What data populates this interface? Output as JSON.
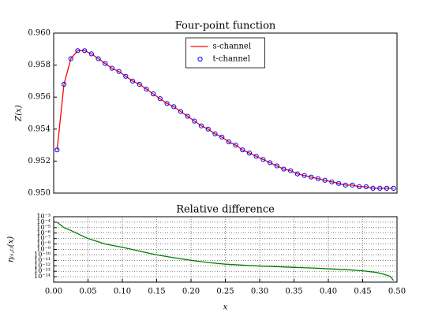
{
  "chart_data": [
    {
      "type": "line",
      "title": "Four-point function",
      "y_label": "Z(x)",
      "x": [
        0.005,
        0.015,
        0.025,
        0.035,
        0.045,
        0.055,
        0.065,
        0.075,
        0.085,
        0.095,
        0.105,
        0.115,
        0.125,
        0.135,
        0.145,
        0.155,
        0.165,
        0.175,
        0.185,
        0.195,
        0.205,
        0.215,
        0.225,
        0.235,
        0.245,
        0.255,
        0.265,
        0.275,
        0.285,
        0.295,
        0.305,
        0.315,
        0.325,
        0.335,
        0.345,
        0.355,
        0.365,
        0.375,
        0.385,
        0.395,
        0.405,
        0.415,
        0.425,
        0.435,
        0.445,
        0.455,
        0.465,
        0.475,
        0.485,
        0.495
      ],
      "series": [
        {
          "name": "s-channel",
          "color": "#ff0000",
          "style": "line",
          "values": [
            0.9527,
            0.9568,
            0.9584,
            0.9589,
            0.9589,
            0.9587,
            0.9584,
            0.9581,
            0.9578,
            0.9576,
            0.9573,
            0.957,
            0.9568,
            0.9565,
            0.9562,
            0.9559,
            0.9556,
            0.9554,
            0.9551,
            0.9548,
            0.9545,
            0.9542,
            0.954,
            0.9537,
            0.9535,
            0.9532,
            0.953,
            0.9527,
            0.9525,
            0.9523,
            0.9521,
            0.9519,
            0.9517,
            0.9515,
            0.9514,
            0.9512,
            0.9511,
            0.951,
            0.9509,
            0.9508,
            0.9507,
            0.9506,
            0.9505,
            0.9505,
            0.9504,
            0.9504,
            0.9503,
            0.9503,
            0.9503,
            0.9503
          ]
        },
        {
          "name": "t-channel",
          "color": "#0000ff",
          "style": "markers",
          "values": [
            0.9527,
            0.9568,
            0.9584,
            0.9589,
            0.9589,
            0.9587,
            0.9584,
            0.9581,
            0.9578,
            0.9576,
            0.9573,
            0.957,
            0.9568,
            0.9565,
            0.9562,
            0.9559,
            0.9556,
            0.9554,
            0.9551,
            0.9548,
            0.9545,
            0.9542,
            0.954,
            0.9537,
            0.9535,
            0.9532,
            0.953,
            0.9527,
            0.9525,
            0.9523,
            0.9521,
            0.9519,
            0.9517,
            0.9515,
            0.9514,
            0.9512,
            0.9511,
            0.951,
            0.9509,
            0.9508,
            0.9507,
            0.9506,
            0.9505,
            0.9505,
            0.9504,
            0.9504,
            0.9503,
            0.9503,
            0.9503,
            0.9503
          ]
        }
      ],
      "xlim": [
        0,
        0.5
      ],
      "ylim": [
        0.95,
        0.96
      ],
      "yticks": [
        {
          "value": 0.95,
          "label": "0.950"
        },
        {
          "value": 0.952,
          "label": "0.952"
        },
        {
          "value": 0.954,
          "label": "0.954"
        },
        {
          "value": 0.956,
          "label": "0.956"
        },
        {
          "value": 0.958,
          "label": "0.958"
        },
        {
          "value": 0.96,
          "label": "0.960"
        }
      ],
      "grid": false,
      "legend": "upper center"
    },
    {
      "type": "line",
      "title": "Relative difference",
      "y_label": "η₍ₛ,ₜ₎(x)",
      "x_label": "x",
      "x": [
        0.005,
        0.015,
        0.025,
        0.05,
        0.075,
        0.1,
        0.125,
        0.15,
        0.175,
        0.2,
        0.225,
        0.25,
        0.275,
        0.3,
        0.325,
        0.35,
        0.375,
        0.4,
        0.425,
        0.45,
        0.47,
        0.48,
        0.49,
        0.495
      ],
      "series": [
        {
          "name": "η",
          "color": "#007f00",
          "style": "line",
          "values": [
            0.0001,
            1e-05,
            3e-06,
            1e-07,
            1e-08,
            2.5e-09,
            5e-10,
            1e-10,
            3e-11,
            1e-11,
            4e-12,
            2e-12,
            1.3e-12,
            9e-13,
            7e-13,
            5e-13,
            4e-13,
            2.8e-13,
            2e-13,
            1.2e-13,
            6e-14,
            3e-14,
            1.2e-14,
            2e-15
          ]
        }
      ],
      "xlim": [
        0,
        0.5
      ],
      "ylim": [
        1e-15,
        0.001
      ],
      "yscale": "log",
      "xticks": [
        {
          "value": 0,
          "label": "0.00"
        },
        {
          "value": 0.05,
          "label": "0.05"
        },
        {
          "value": 0.1,
          "label": "0.10"
        },
        {
          "value": 0.15,
          "label": "0.15"
        },
        {
          "value": 0.2,
          "label": "0.20"
        },
        {
          "value": 0.25,
          "label": "0.25"
        },
        {
          "value": 0.3,
          "label": "0.30"
        },
        {
          "value": 0.35,
          "label": "0.35"
        },
        {
          "value": 0.4,
          "label": "0.40"
        },
        {
          "value": 0.45,
          "label": "0.45"
        },
        {
          "value": 0.5,
          "label": "0.50"
        }
      ],
      "yticks": [
        {
          "value": 1e-14,
          "label": "10⁻¹⁴"
        },
        {
          "value": 1e-13,
          "label": "10⁻¹³"
        },
        {
          "value": 1e-12,
          "label": "10⁻¹²"
        },
        {
          "value": 1e-11,
          "label": "10⁻¹¹"
        },
        {
          "value": 1e-10,
          "label": "10⁻¹⁰"
        },
        {
          "value": 1e-09,
          "label": "10⁻⁹"
        },
        {
          "value": 1e-08,
          "label": "10⁻⁸"
        },
        {
          "value": 1e-07,
          "label": "10⁻⁷"
        },
        {
          "value": 1e-06,
          "label": "10⁻⁶"
        },
        {
          "value": 1e-05,
          "label": "10⁻⁵"
        },
        {
          "value": 0.0001,
          "label": "10⁻⁴"
        },
        {
          "value": 0.001,
          "label": "10⁻³"
        }
      ],
      "grid": true
    }
  ]
}
